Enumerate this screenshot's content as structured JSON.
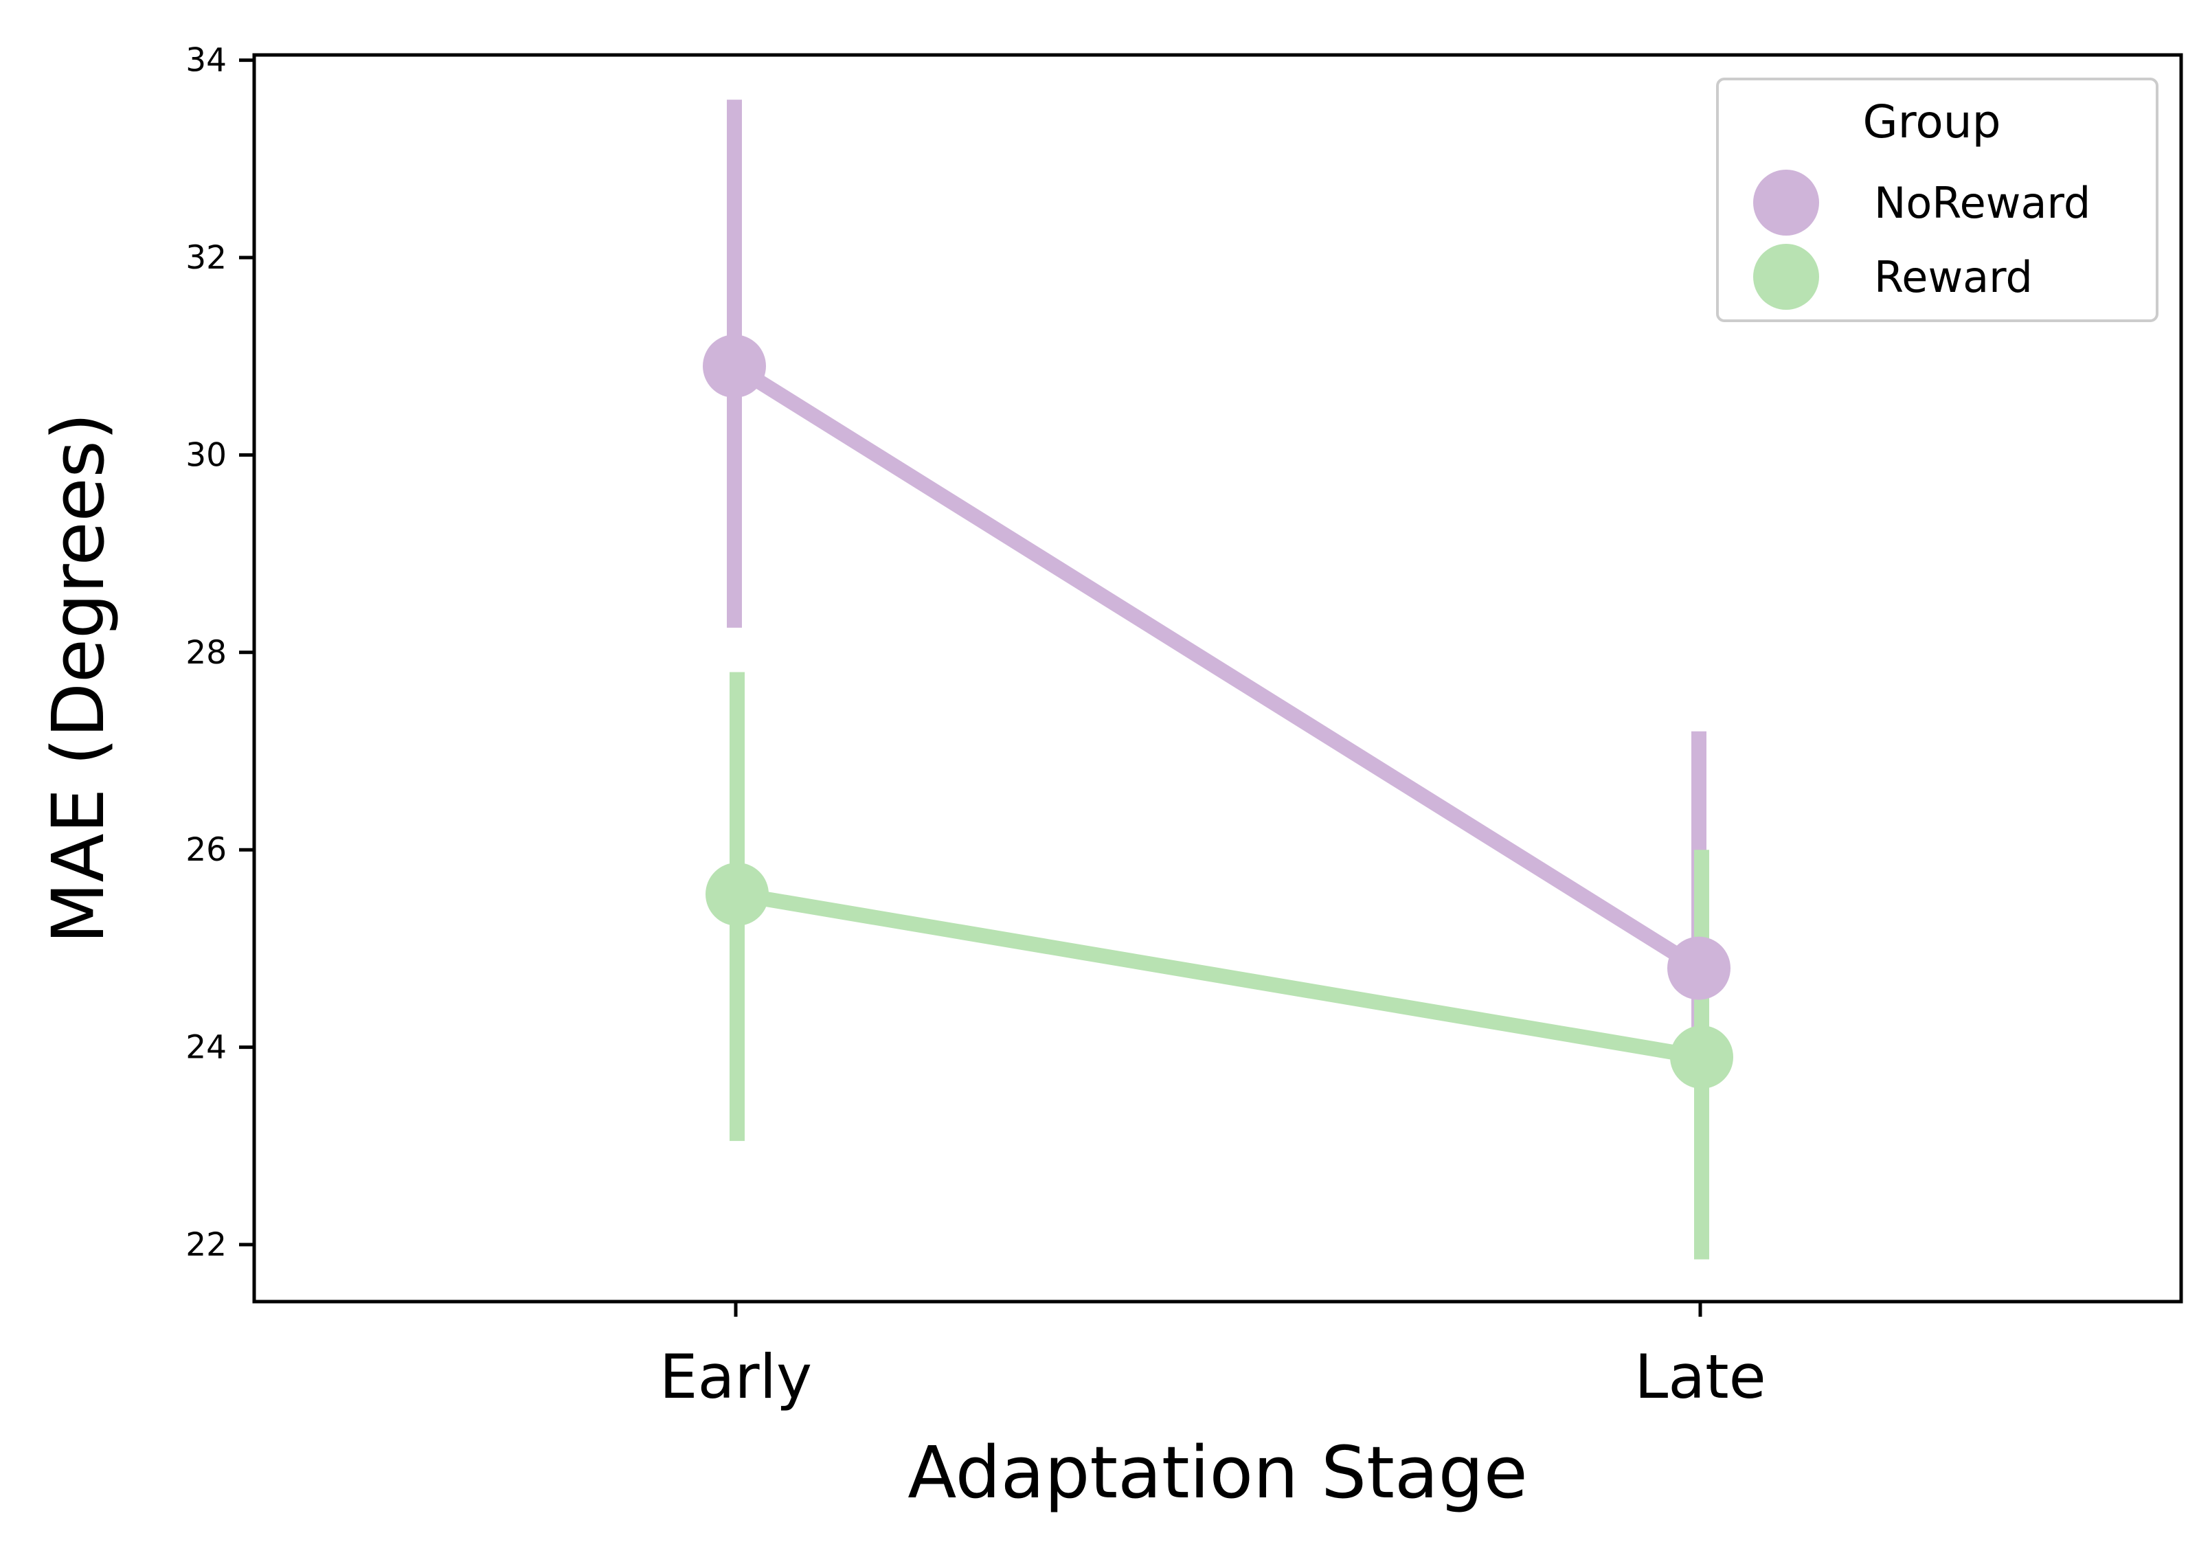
{
  "chart_data": {
    "type": "line",
    "title": "",
    "xlabel": "Adaptation Stage",
    "ylabel": "MAE (Degrees)",
    "categories": [
      "Early",
      "Late"
    ],
    "ylim": [
      21.4,
      34.1
    ],
    "yticks": [
      22,
      24,
      26,
      28,
      30,
      32,
      34
    ],
    "grid": false,
    "legend": {
      "title": "Group",
      "position": "top-right"
    },
    "series": [
      {
        "name": "NoReward",
        "color": "#cfb4d9",
        "values": [
          30.9,
          24.8
        ],
        "ci_low": [
          28.25,
          23.9
        ],
        "ci_high": [
          33.6,
          27.2
        ]
      },
      {
        "name": "Reward",
        "color": "#b8e2b2",
        "values": [
          25.55,
          23.9
        ],
        "ci_low": [
          23.05,
          21.85
        ],
        "ci_high": [
          27.8,
          26.0
        ]
      }
    ]
  }
}
